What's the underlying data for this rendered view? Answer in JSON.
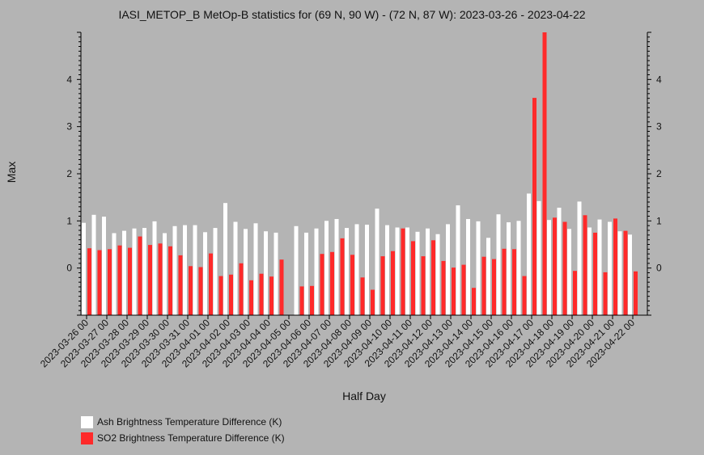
{
  "chart_data": {
    "type": "bar",
    "title": "IASI_METOP_B MetOp-B statistics for (69 N, 90 W) - (72 N, 87 W): 2023-03-26 - 2023-04-22",
    "xlabel": "Half Day",
    "ylabel": "Max",
    "ylim": [
      -1,
      5
    ],
    "yticks": [
      0,
      1,
      2,
      3,
      4
    ],
    "grid": false,
    "legend_position": "bottom-left",
    "categories": [
      "2023-03-26 00",
      "2023-03-26 12",
      "2023-03-27 00",
      "2023-03-27 12",
      "2023-03-28 00",
      "2023-03-28 12",
      "2023-03-29 00",
      "2023-03-29 12",
      "2023-03-30 00",
      "2023-03-30 12",
      "2023-03-31 00",
      "2023-03-31 12",
      "2023-04-01 00",
      "2023-04-01 12",
      "2023-04-02 00",
      "2023-04-02 12",
      "2023-04-03 00",
      "2023-04-03 12",
      "2023-04-04 00",
      "2023-04-04 12",
      "2023-04-05 00",
      "2023-04-05 12",
      "2023-04-06 00",
      "2023-04-06 12",
      "2023-04-07 00",
      "2023-04-07 12",
      "2023-04-08 00",
      "2023-04-08 12",
      "2023-04-09 00",
      "2023-04-09 12",
      "2023-04-10 00",
      "2023-04-10 12",
      "2023-04-11 00",
      "2023-04-11 12",
      "2023-04-12 00",
      "2023-04-12 12",
      "2023-04-13 00",
      "2023-04-13 12",
      "2023-04-14 00",
      "2023-04-14 12",
      "2023-04-15 00",
      "2023-04-15 12",
      "2023-04-16 00",
      "2023-04-16 12",
      "2023-04-17 00",
      "2023-04-17 12",
      "2023-04-18 00",
      "2023-04-18 12",
      "2023-04-19 00",
      "2023-04-19 12",
      "2023-04-20 00",
      "2023-04-20 12",
      "2023-04-21 00",
      "2023-04-21 12",
      "2023-04-22 00"
    ],
    "tick_labels": [
      "2023-03-26 00",
      "2023-03-27 00",
      "2023-03-28 00",
      "2023-03-29 00",
      "2023-03-30 00",
      "2023-03-31 00",
      "2023-04-01 00",
      "2023-04-02 00",
      "2023-04-03 00",
      "2023-04-04 00",
      "2023-04-05 00",
      "2023-04-06 00",
      "2023-04-07 00",
      "2023-04-08 00",
      "2023-04-09 00",
      "2023-04-10 00",
      "2023-04-11 00",
      "2023-04-12 00",
      "2023-04-13 00",
      "2023-04-14 00",
      "2023-04-15 00",
      "2023-04-16 00",
      "2023-04-17 00",
      "2023-04-18 00",
      "2023-04-19 00",
      "2023-04-20 00",
      "2023-04-21 00",
      "2023-04-22 00"
    ],
    "series": [
      {
        "name": "Ash Brightness Temperature Difference (K)",
        "color": "#ffffff",
        "values": [
          0.96,
          1.13,
          1.09,
          0.74,
          0.79,
          0.84,
          0.85,
          0.99,
          0.74,
          0.89,
          0.91,
          0.91,
          0.76,
          0.85,
          1.38,
          0.98,
          0.83,
          0.95,
          0.78,
          0.75,
          null,
          0.89,
          0.75,
          0.84,
          1.0,
          1.04,
          0.85,
          0.93,
          0.92,
          1.26,
          0.91,
          0.86,
          0.86,
          0.77,
          0.84,
          0.72,
          0.93,
          1.33,
          1.04,
          0.99,
          0.64,
          1.14,
          0.97,
          1.0,
          1.58,
          1.42,
          1.02,
          1.28,
          0.83,
          1.41,
          0.86,
          1.03,
          0.98,
          0.78,
          0.71
        ]
      },
      {
        "name": "SO2 Brightness Temperature Difference (K)",
        "color": "#ff2a2a",
        "values": [
          0.42,
          0.38,
          0.4,
          0.48,
          0.43,
          0.67,
          0.49,
          0.52,
          0.46,
          0.27,
          0.04,
          0.02,
          0.31,
          -0.17,
          -0.14,
          0.1,
          -0.26,
          -0.12,
          -0.18,
          0.18,
          null,
          -0.39,
          -0.38,
          0.3,
          0.34,
          0.63,
          0.28,
          -0.2,
          -0.46,
          0.25,
          0.36,
          0.84,
          0.57,
          0.25,
          0.59,
          0.15,
          0.01,
          0.07,
          -0.42,
          0.24,
          0.19,
          0.41,
          0.4,
          -0.17,
          3.61,
          5.0,
          1.07,
          0.98,
          -0.06,
          1.12,
          0.75,
          -0.09,
          1.05,
          0.79,
          -0.07
        ]
      }
    ]
  }
}
